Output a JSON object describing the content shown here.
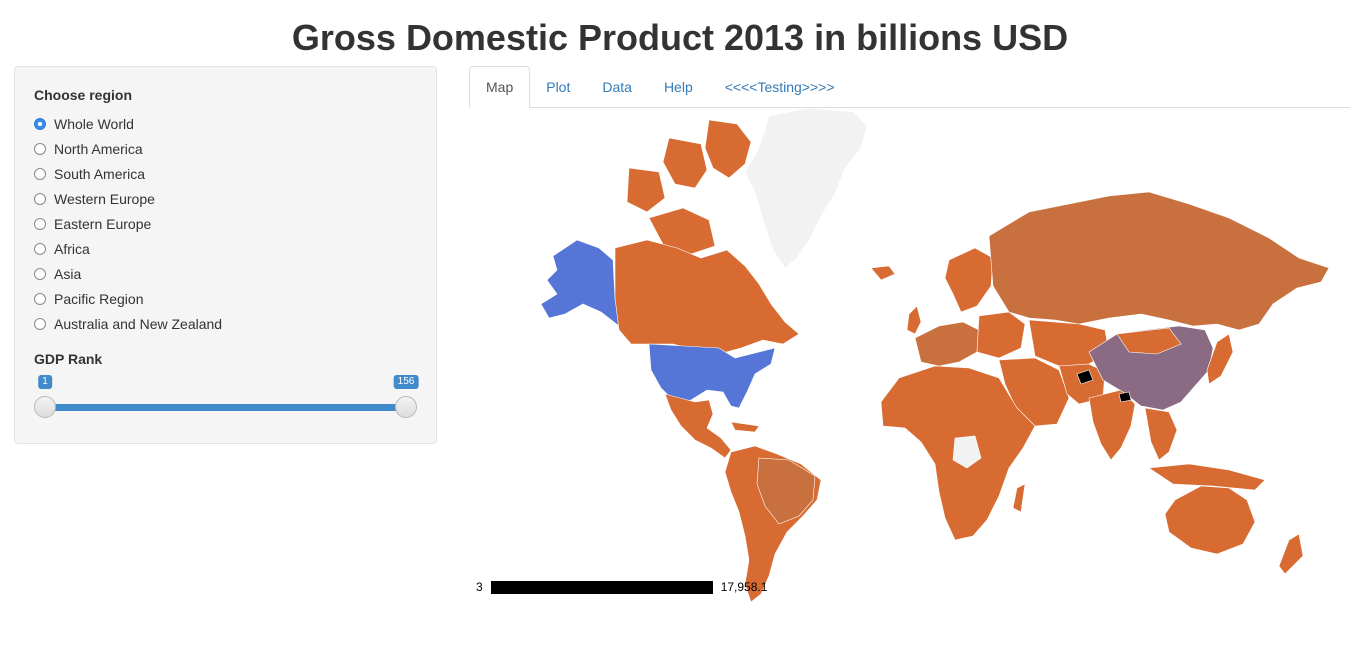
{
  "title": "Gross Domestic Product 2013 in billions USD",
  "sidebar": {
    "region_label": "Choose region",
    "regions": [
      {
        "label": "Whole World",
        "selected": true
      },
      {
        "label": "North America",
        "selected": false
      },
      {
        "label": "South America",
        "selected": false
      },
      {
        "label": "Western Europe",
        "selected": false
      },
      {
        "label": "Eastern Europe",
        "selected": false
      },
      {
        "label": "Africa",
        "selected": false
      },
      {
        "label": "Asia",
        "selected": false
      },
      {
        "label": "Pacific Region",
        "selected": false
      },
      {
        "label": "Australia and New Zealand",
        "selected": false
      }
    ],
    "rank_label": "GDP Rank",
    "rank_slider": {
      "min": 1,
      "max": 156,
      "low": 1,
      "high": 156,
      "low_label": "1",
      "high_label": "156"
    }
  },
  "tabs": [
    {
      "label": "Map",
      "active": true
    },
    {
      "label": "Plot",
      "active": false
    },
    {
      "label": "Data",
      "active": false
    },
    {
      "label": "Help",
      "active": false
    },
    {
      "label": "<<<<Testing>>>>",
      "active": false
    }
  ],
  "map": {
    "colors": {
      "default": "#d86b32",
      "no_data": "#f2f2f2",
      "usa": "#5576d6",
      "china": "#8b6a83",
      "mid": "#c9703f",
      "black": "#000000"
    },
    "legend": {
      "min_label": "3",
      "max_label": "17,958.1"
    }
  }
}
